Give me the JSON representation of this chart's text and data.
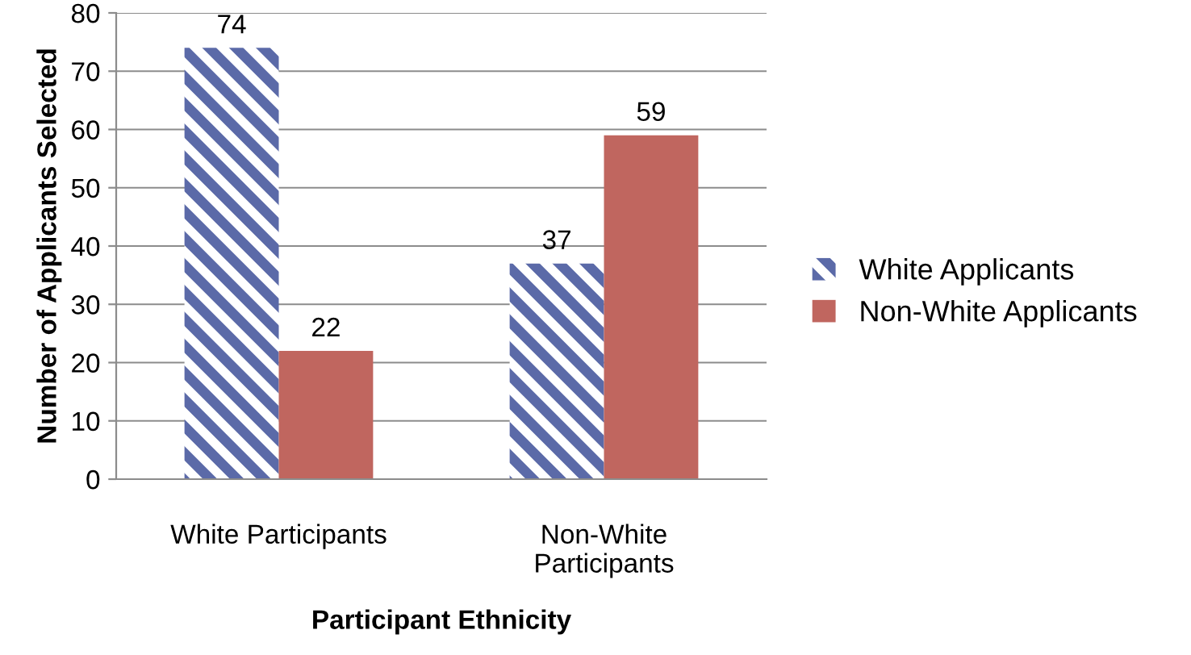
{
  "chart_data": {
    "type": "bar",
    "xlabel": "Participant Ethnicity",
    "ylabel": "Number of Applicants Selected",
    "categories": [
      "White Participants",
      "Non-White\nParticipants"
    ],
    "series": [
      {
        "name": "White Applicants",
        "color": "#5b6aa8",
        "values": [
          74,
          37
        ]
      },
      {
        "name": "Non-White Applicants",
        "color": "#c0665f",
        "values": [
          22,
          59
        ]
      }
    ],
    "ylim": [
      0,
      80
    ],
    "yticks": [
      0,
      10,
      20,
      30,
      40,
      50,
      60,
      70,
      80
    ],
    "grid": "y",
    "legend": "right",
    "data_labels": true
  }
}
